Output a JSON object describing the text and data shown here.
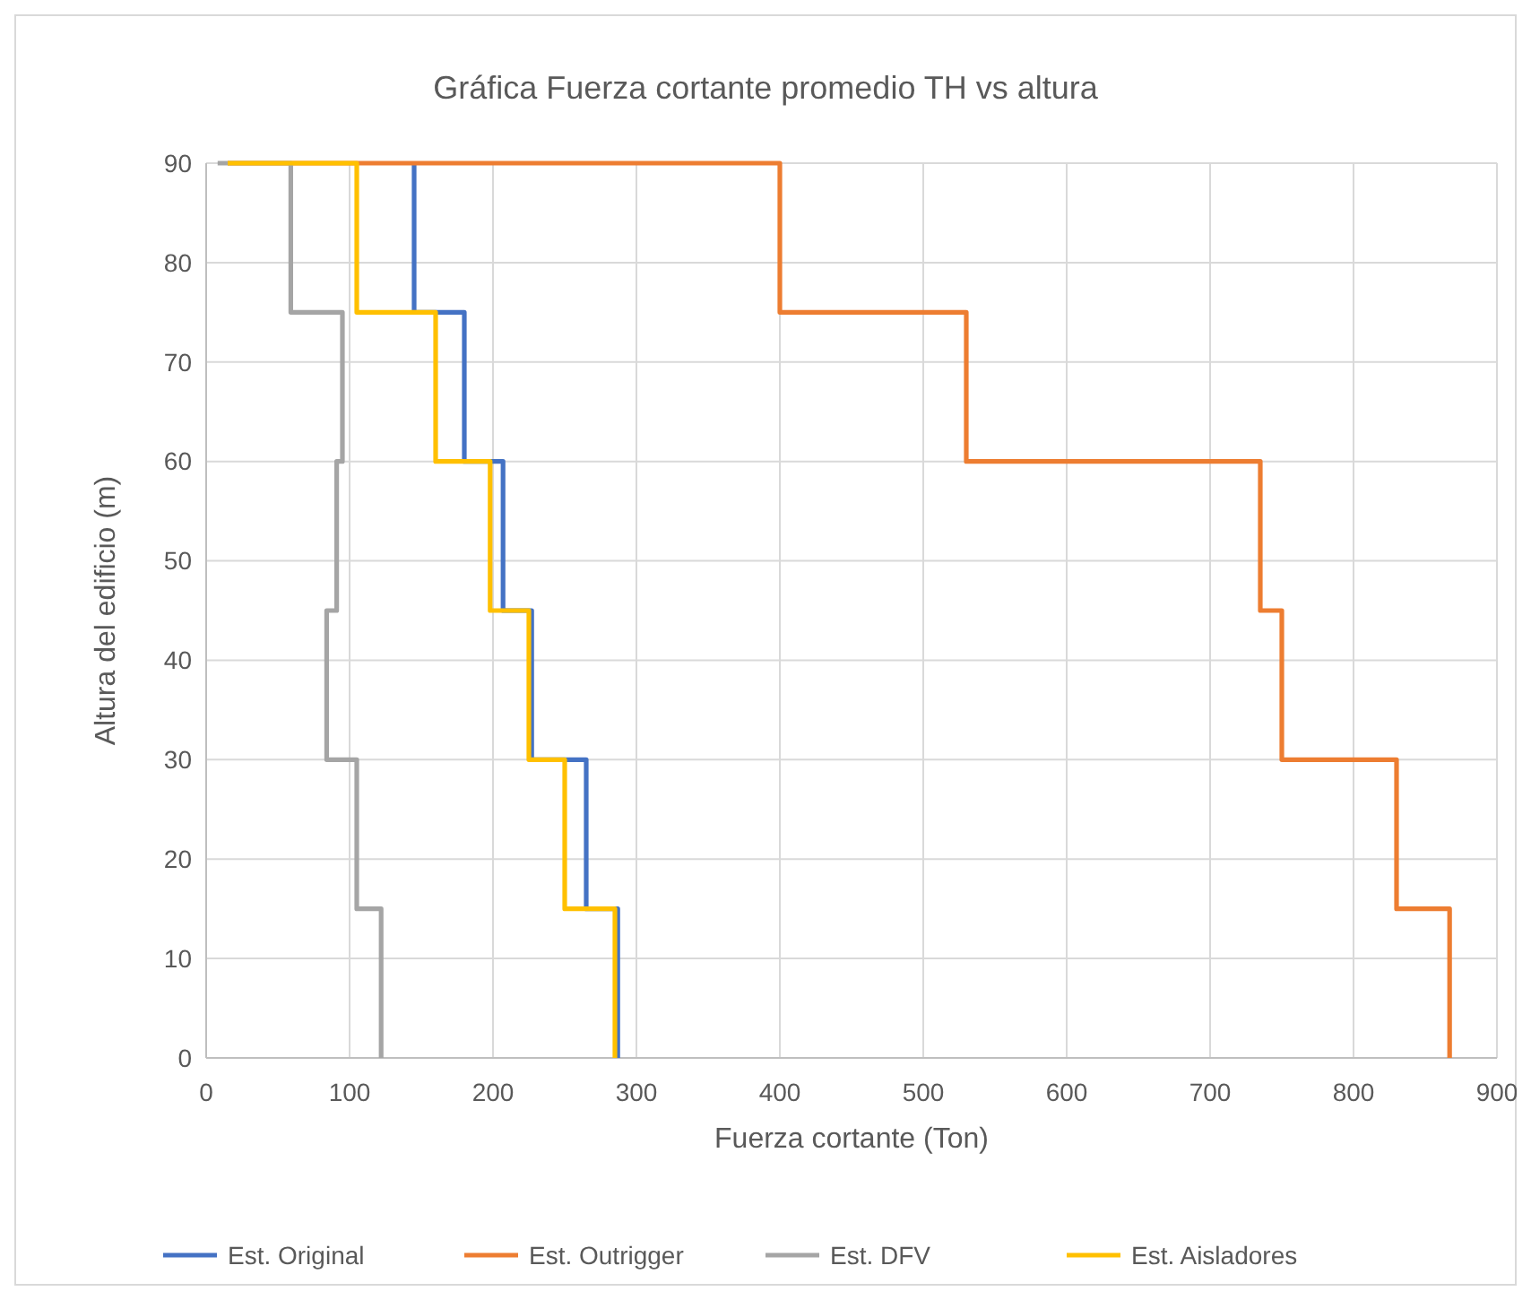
{
  "chart_data": {
    "type": "line",
    "title": "Gráfica Fuerza cortante promedio TH vs altura",
    "xlabel": "Fuerza cortante (Ton)",
    "ylabel": "Altura del edificio (m)",
    "xlim": [
      0,
      900
    ],
    "xticks": [
      0,
      100,
      200,
      300,
      400,
      500,
      600,
      700,
      800,
      900
    ],
    "ylim": [
      0,
      90
    ],
    "yticks": [
      0,
      10,
      20,
      30,
      40,
      50,
      60,
      70,
      80,
      90
    ],
    "grid": true,
    "legend": "bottom",
    "marker": "none",
    "line_style": "solid",
    "series": [
      {
        "name": "Est. Original",
        "color": "#4472c4",
        "x": [
          145,
          145,
          180,
          180,
          207,
          207,
          227,
          227,
          265,
          265,
          287,
          287
        ],
        "values": [
          90,
          75,
          75,
          60,
          60,
          45,
          45,
          30,
          30,
          15,
          15,
          0
        ]
      },
      {
        "name": "Est. Outrigger",
        "color": "#ed7d31",
        "x": [
          15,
          400,
          400,
          530,
          530,
          735,
          735,
          750,
          750,
          830,
          830,
          867,
          867
        ],
        "values": [
          90,
          90,
          75,
          75,
          60,
          60,
          45,
          45,
          30,
          30,
          15,
          15,
          0
        ]
      },
      {
        "name": "Est. DFV",
        "color": "#a5a5a5",
        "x": [
          8,
          59,
          59,
          95,
          95,
          91,
          91,
          84,
          84,
          105,
          105,
          122,
          122
        ],
        "values": [
          90,
          90,
          75,
          75,
          60,
          60,
          45,
          45,
          30,
          30,
          15,
          15,
          0
        ]
      },
      {
        "name": "Est. Aisladores",
        "color": "#ffc000",
        "x": [
          15,
          105,
          105,
          160,
          160,
          198,
          198,
          225,
          225,
          250,
          250,
          285,
          285
        ],
        "values": [
          90,
          90,
          75,
          75,
          60,
          60,
          45,
          45,
          30,
          30,
          15,
          15,
          0
        ]
      }
    ]
  }
}
